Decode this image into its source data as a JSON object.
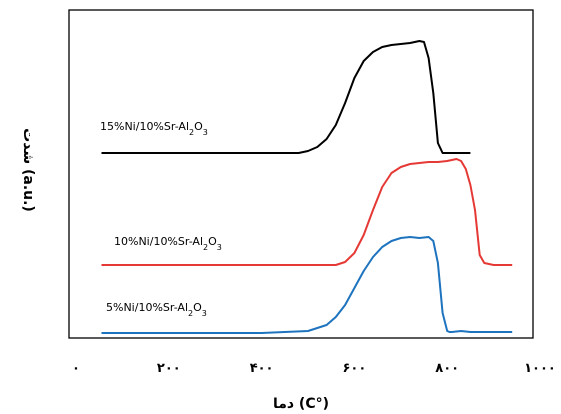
{
  "chart_data": {
    "type": "line",
    "xlabel": "(°C) دما",
    "ylabel": "شدت (a.u.)",
    "xlim": [
      0,
      1000
    ],
    "xticks": [
      0,
      200,
      400,
      600,
      800,
      1000
    ],
    "xtick_labels": [
      "۰",
      "۲۰۰",
      "۴۰۰",
      "۶۰۰",
      "۸۰۰",
      "۱۰۰۰"
    ],
    "grid": false,
    "legend": "none",
    "series": [
      {
        "name": "15%Ni/10%Sr-Al2O3",
        "color": "#000000",
        "baseline": 0,
        "x": [
          55,
          200,
          400,
          480,
          500,
          520,
          540,
          560,
          580,
          600,
          620,
          640,
          660,
          680,
          700,
          720,
          740,
          750,
          760,
          770,
          780,
          790,
          800,
          850
        ],
        "y": [
          0,
          0,
          0,
          0,
          2,
          6,
          14,
          28,
          50,
          75,
          92,
          101,
          106,
          108,
          109,
          110,
          112,
          111,
          95,
          60,
          10,
          0,
          0,
          0
        ]
      },
      {
        "name": "10%Ni/10%Sr-Al2O3",
        "color": "#e53935",
        "baseline": 0,
        "x": [
          55,
          200,
          400,
          560,
          580,
          600,
          620,
          640,
          660,
          680,
          700,
          720,
          740,
          760,
          780,
          800,
          820,
          830,
          840,
          850,
          860,
          870,
          880,
          900,
          940
        ],
        "y": [
          0,
          0,
          0,
          0,
          3,
          12,
          30,
          55,
          78,
          92,
          98,
          101,
          102,
          103,
          103,
          104,
          106,
          104,
          96,
          80,
          55,
          10,
          2,
          0,
          0
        ]
      },
      {
        "name": "5%Ni/10%Sr-Al2O3",
        "color": "#1e73be",
        "baseline": 0,
        "x": [
          55,
          200,
          400,
          500,
          540,
          560,
          580,
          600,
          620,
          640,
          660,
          680,
          700,
          720,
          740,
          760,
          770,
          780,
          790,
          800,
          805,
          810,
          830,
          850,
          900,
          940
        ],
        "y": [
          0,
          0,
          0,
          2,
          8,
          16,
          28,
          45,
          62,
          76,
          86,
          92,
          95,
          96,
          95,
          96,
          92,
          70,
          20,
          2,
          1,
          1,
          2,
          1,
          1,
          1
        ]
      }
    ],
    "series_labels": [
      [
        "15%Ni/10%Sr-Al",
        "2",
        "O",
        "3"
      ],
      [
        "10%Ni/10%Sr-Al",
        "2",
        "O",
        "3"
      ],
      [
        "5%Ni/10%Sr-Al",
        "2",
        "O",
        "3"
      ]
    ]
  }
}
